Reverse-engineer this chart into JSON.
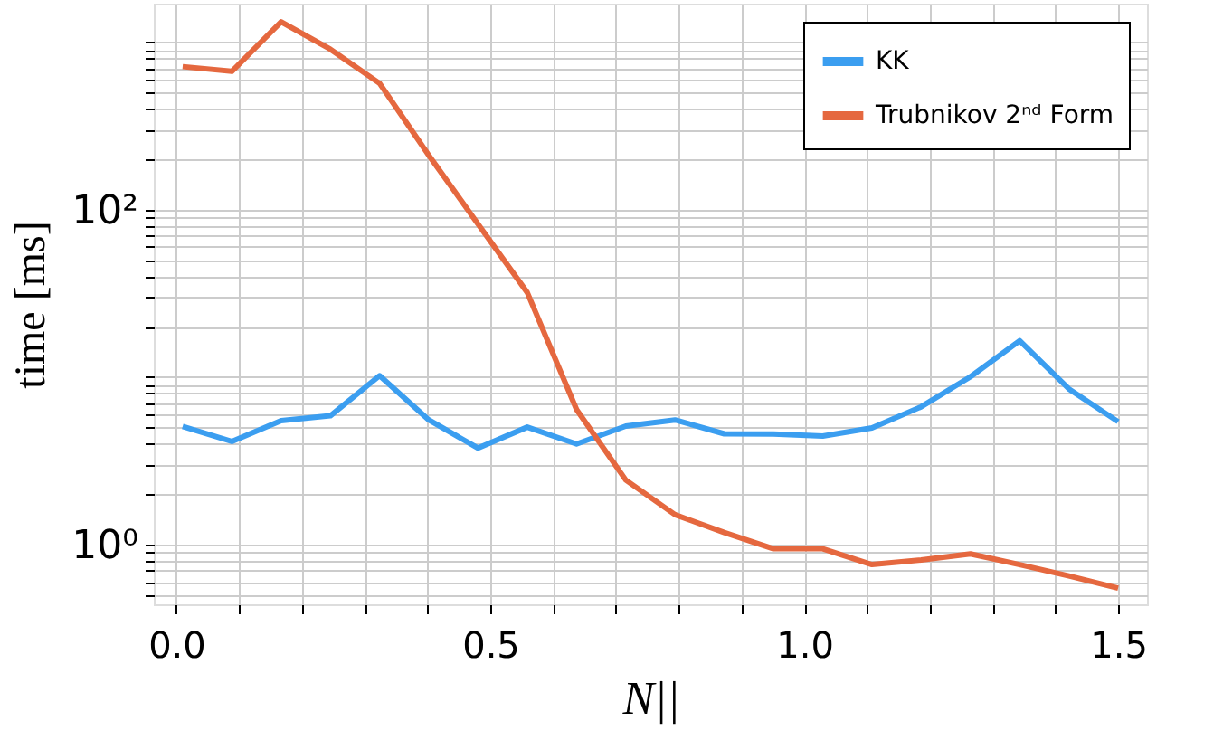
{
  "chart_data": {
    "type": "line",
    "xlabel": "N||",
    "ylabel": "time [ms]",
    "log": "y",
    "grid": true,
    "legend": "top right",
    "marker": "none",
    "line_style": "solid",
    "x": [
      0.01,
      0.0884,
      0.1668,
      0.2453,
      0.3237,
      0.4021,
      0.4805,
      0.5589,
      0.6374,
      0.7158,
      0.7942,
      0.8726,
      0.9511,
      1.0295,
      1.1079,
      1.1863,
      1.2647,
      1.3432,
      1.4216,
      1.5
    ],
    "series": [
      {
        "name": "KK",
        "color": "#3b9ef0",
        "values": [
          5.07,
          4.13,
          5.5,
          5.88,
          10.2,
          5.55,
          3.77,
          5.03,
          3.99,
          5.1,
          5.55,
          4.59,
          4.57,
          4.45,
          4.98,
          6.65,
          10.05,
          16.5,
          8.5,
          5.42
        ]
      },
      {
        "name": "Trubnikov 2ⁿᵈ Form",
        "color": "#e5683f",
        "values": [
          715,
          670,
          1325,
          908,
          568,
          211,
          82,
          32,
          6.4,
          2.43,
          1.51,
          1.18,
          0.945,
          0.945,
          0.76,
          0.81,
          0.88,
          0.76,
          0.65,
          0.55
        ]
      }
    ],
    "xlim": [
      -0.036,
      1.546
    ],
    "ylim": [
      0.44,
      1700
    ],
    "xticks": [
      {
        "value": 0.0,
        "label": "0.0"
      },
      {
        "value": 0.1,
        "label": null
      },
      {
        "value": 0.2,
        "label": null
      },
      {
        "value": 0.3,
        "label": null
      },
      {
        "value": 0.4,
        "label": null
      },
      {
        "value": 0.5,
        "label": "0.5"
      },
      {
        "value": 0.6,
        "label": null
      },
      {
        "value": 0.7,
        "label": null
      },
      {
        "value": 0.8,
        "label": null
      },
      {
        "value": 0.9,
        "label": null
      },
      {
        "value": 1.0,
        "label": "1.0"
      },
      {
        "value": 1.1,
        "label": null
      },
      {
        "value": 1.2,
        "label": null
      },
      {
        "value": 1.3,
        "label": null
      },
      {
        "value": 1.4,
        "label": null
      },
      {
        "value": 1.5,
        "label": "1.5"
      }
    ],
    "yticks": [
      {
        "value": 0.5,
        "label": null
      },
      {
        "value": 0.6,
        "label": null
      },
      {
        "value": 0.7,
        "label": null
      },
      {
        "value": 0.8,
        "label": null
      },
      {
        "value": 0.9,
        "label": null
      },
      {
        "value": 1,
        "label": "10⁰"
      },
      {
        "value": 2,
        "label": null
      },
      {
        "value": 3,
        "label": null
      },
      {
        "value": 4,
        "label": null
      },
      {
        "value": 5,
        "label": null
      },
      {
        "value": 6,
        "label": null
      },
      {
        "value": 7,
        "label": null
      },
      {
        "value": 8,
        "label": null
      },
      {
        "value": 9,
        "label": null
      },
      {
        "value": 10,
        "label": null
      },
      {
        "value": 20,
        "label": null
      },
      {
        "value": 30,
        "label": null
      },
      {
        "value": 40,
        "label": null
      },
      {
        "value": 50,
        "label": null
      },
      {
        "value": 60,
        "label": null
      },
      {
        "value": 70,
        "label": null
      },
      {
        "value": 80,
        "label": null
      },
      {
        "value": 90,
        "label": null
      },
      {
        "value": 100,
        "label": "10²"
      },
      {
        "value": 200,
        "label": null
      },
      {
        "value": 300,
        "label": null
      },
      {
        "value": 400,
        "label": null
      },
      {
        "value": 500,
        "label": null
      },
      {
        "value": 600,
        "label": null
      },
      {
        "value": 700,
        "label": null
      },
      {
        "value": 800,
        "label": null
      },
      {
        "value": 900,
        "label": null
      },
      {
        "value": 1000,
        "label": null
      }
    ]
  }
}
